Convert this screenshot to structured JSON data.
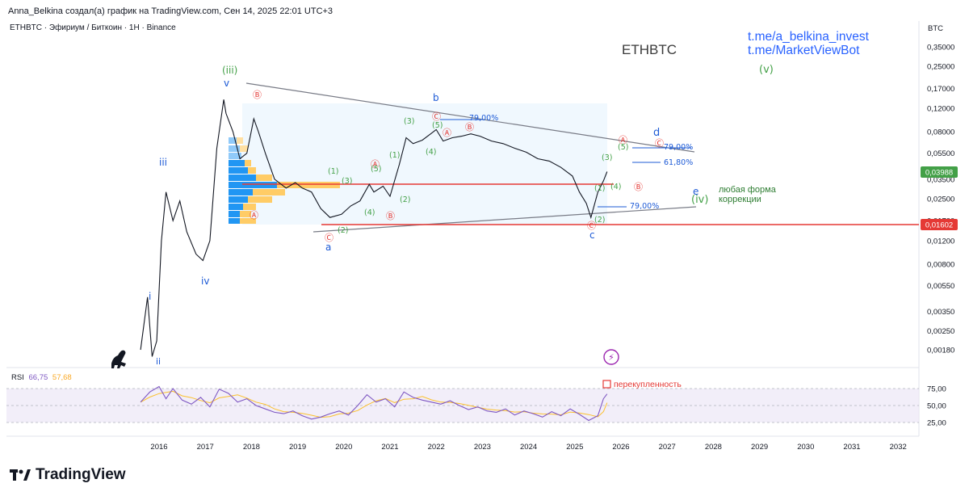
{
  "header": {
    "author_line": "Anna_Belkina создал(а) график на TradingView.com, Сен 14, 2025 22:01 UTC+3",
    "symbol_line": "ETHBTC · Эфириум / Биткоин · 1H · Binance",
    "currency": "BTC"
  },
  "overlay": {
    "title": "ETHBTC",
    "link1": "t.me/a_belkina_invest",
    "link2": "t.me/MarketViewBot"
  },
  "price_tags": {
    "current": "0,03988",
    "level": "0,01602"
  },
  "notes": {
    "correction": "любая форма\nкоррекции",
    "overbought": "перекупленность"
  },
  "rsi": {
    "label": "RSI",
    "value": "66,75",
    "ma": "57,68",
    "ticks": [
      "75,00",
      "50,00",
      "25,00"
    ]
  },
  "footer": {
    "brand": "TradingView"
  },
  "colors": {
    "price": "#131722",
    "rsi": "#7e57c2",
    "rsi_ma": "#fbc02d",
    "red_level": "#e53935",
    "wave_green": "#43a047",
    "wave_blue": "#1e5bd6",
    "tag_green": "#43a047",
    "tag_red": "#e53935"
  },
  "chart_data": {
    "type": "line",
    "title": "ETHBTC",
    "y_scale": "log",
    "y_ticks": [
      "0,35000",
      "0,25000",
      "0,17000",
      "0,12000",
      "0,08000",
      "0,05500",
      "0,03500",
      "0,02500",
      "0,01700",
      "0,01200",
      "0,00800",
      "0,00550",
      "0,00350",
      "0,00250",
      "0,00180"
    ],
    "y_tick_values": [
      0.35,
      0.25,
      0.17,
      0.12,
      0.08,
      0.055,
      0.035,
      0.025,
      0.017,
      0.012,
      0.008,
      0.0055,
      0.0035,
      0.0025,
      0.0018
    ],
    "x_ticks": [
      "2016",
      "2017",
      "2018",
      "2019",
      "2020",
      "2021",
      "2022",
      "2023",
      "2024",
      "2025",
      "2026",
      "2027",
      "2028",
      "2029",
      "2030",
      "2031",
      "2032"
    ],
    "series": [
      {
        "name": "ETHBTC",
        "x": [
          2015.6,
          2015.75,
          2015.85,
          2015.95,
          2016.05,
          2016.15,
          2016.3,
          2016.45,
          2016.6,
          2016.8,
          2016.95,
          2017.1,
          2017.25,
          2017.4,
          2017.45,
          2017.6,
          2017.75,
          2017.9,
          2018.05,
          2018.15,
          2018.3,
          2018.5,
          2018.75,
          2018.95,
          2019.1,
          2019.3,
          2019.5,
          2019.7,
          2019.95,
          2020.15,
          2020.35,
          2020.55,
          2020.65,
          2020.85,
          2021.0,
          2021.2,
          2021.35,
          2021.5,
          2021.7,
          2021.9,
          2022.0,
          2022.15,
          2022.35,
          2022.55,
          2022.75,
          2022.95,
          2023.2,
          2023.45,
          2023.7,
          2023.95,
          2024.2,
          2024.45,
          2024.7,
          2024.95,
          2025.1,
          2025.25,
          2025.35,
          2025.5,
          2025.62,
          2025.7
        ],
        "values": [
          0.0018,
          0.0045,
          0.0016,
          0.0021,
          0.012,
          0.028,
          0.017,
          0.024,
          0.014,
          0.0095,
          0.0085,
          0.012,
          0.06,
          0.14,
          0.11,
          0.08,
          0.05,
          0.055,
          0.1,
          0.08,
          0.055,
          0.035,
          0.03,
          0.033,
          0.03,
          0.028,
          0.021,
          0.018,
          0.019,
          0.022,
          0.024,
          0.032,
          0.028,
          0.031,
          0.026,
          0.045,
          0.072,
          0.065,
          0.069,
          0.078,
          0.083,
          0.068,
          0.072,
          0.074,
          0.077,
          0.074,
          0.068,
          0.065,
          0.06,
          0.056,
          0.05,
          0.048,
          0.043,
          0.037,
          0.028,
          0.023,
          0.018,
          0.028,
          0.034,
          0.0399
        ]
      },
      {
        "name": "RSI",
        "x": [
          2015.6,
          2015.8,
          2016.0,
          2016.15,
          2016.3,
          2016.5,
          2016.7,
          2016.9,
          2017.1,
          2017.3,
          2017.5,
          2017.7,
          2017.9,
          2018.1,
          2018.3,
          2018.5,
          2018.7,
          2018.9,
          2019.1,
          2019.3,
          2019.5,
          2019.7,
          2019.9,
          2020.1,
          2020.3,
          2020.5,
          2020.7,
          2020.9,
          2021.1,
          2021.3,
          2021.5,
          2021.7,
          2021.9,
          2022.1,
          2022.3,
          2022.5,
          2022.7,
          2022.9,
          2023.1,
          2023.3,
          2023.5,
          2023.7,
          2023.9,
          2024.1,
          2024.3,
          2024.5,
          2024.7,
          2024.9,
          2025.1,
          2025.3,
          2025.5,
          2025.62,
          2025.7
        ],
        "values": [
          55,
          70,
          78,
          60,
          75,
          58,
          52,
          62,
          48,
          74,
          68,
          55,
          60,
          50,
          45,
          40,
          38,
          42,
          35,
          30,
          33,
          38,
          42,
          36,
          50,
          66,
          55,
          60,
          48,
          70,
          62,
          58,
          55,
          52,
          57,
          50,
          44,
          48,
          42,
          40,
          45,
          36,
          42,
          38,
          33,
          41,
          35,
          45,
          37,
          28,
          35,
          60,
          67
        ]
      }
    ],
    "annotations": [
      "(iii)",
      "v",
      "iii",
      "i",
      "ii",
      "iv",
      "a",
      "b",
      "c",
      "(v)",
      "(iv)",
      "e",
      "d",
      "79,00%",
      "61,80%",
      "Ⓐ",
      "Ⓑ",
      "Ⓒ",
      "(1)",
      "(2)",
      "(3)",
      "(4)",
      "(5)"
    ]
  }
}
